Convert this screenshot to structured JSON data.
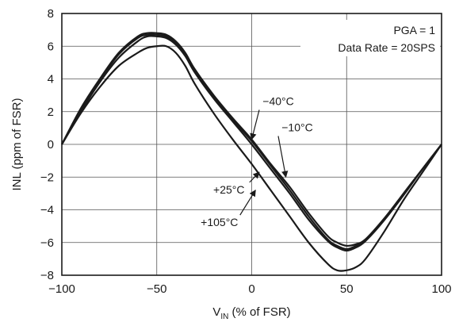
{
  "chart_data": {
    "type": "line",
    "title": "",
    "xlabel": {
      "main": "V",
      "sub": "IN",
      "rest": " (% of FSR)"
    },
    "ylabel": "INL (ppm of FSR)",
    "xlim": [
      -100,
      100
    ],
    "ylim": [
      -8,
      8
    ],
    "xticks": [
      -100,
      -50,
      0,
      50,
      100
    ],
    "xtick_labels": [
      "−100",
      "−50",
      "0",
      "50",
      "100"
    ],
    "yticks": [
      -8,
      -6,
      -4,
      -2,
      0,
      2,
      4,
      6,
      8
    ],
    "ytick_labels": [
      "−8",
      "−6",
      "−4",
      "−2",
      "0",
      "2",
      "4",
      "6",
      "8"
    ],
    "grid": true,
    "annotations": [
      "PGA = 1",
      "Data Rate = 20SPS"
    ],
    "series": [
      {
        "name": "−40°C",
        "x": [
          -100,
          -90,
          -80,
          -70,
          -60,
          -55,
          -50,
          -45,
          -40,
          -35,
          -30,
          -20,
          -10,
          0,
          10,
          20,
          30,
          40,
          45,
          50,
          55,
          60,
          70,
          80,
          90,
          100
        ],
        "y": [
          0,
          2.2,
          4.0,
          5.6,
          6.6,
          6.8,
          6.8,
          6.7,
          6.3,
          5.6,
          4.6,
          3.0,
          1.6,
          0.3,
          -1.2,
          -2.6,
          -4.2,
          -5.6,
          -6.0,
          -6.2,
          -6.1,
          -5.8,
          -4.6,
          -3.1,
          -1.5,
          0
        ]
      },
      {
        "name": "−10°C",
        "x": [
          -100,
          -90,
          -80,
          -70,
          -60,
          -55,
          -50,
          -45,
          -40,
          -35,
          -30,
          -20,
          -10,
          0,
          10,
          20,
          30,
          40,
          45,
          50,
          55,
          60,
          70,
          80,
          90,
          100
        ],
        "y": [
          0,
          2.1,
          3.9,
          5.5,
          6.5,
          6.7,
          6.7,
          6.6,
          6.2,
          5.5,
          4.5,
          2.9,
          1.5,
          0.2,
          -1.3,
          -2.8,
          -4.4,
          -5.8,
          -6.2,
          -6.4,
          -6.2,
          -5.8,
          -4.5,
          -3.0,
          -1.5,
          0
        ]
      },
      {
        "name": "+25°C",
        "x": [
          -100,
          -90,
          -80,
          -70,
          -60,
          -55,
          -50,
          -45,
          -40,
          -35,
          -30,
          -20,
          -10,
          0,
          10,
          20,
          30,
          40,
          45,
          50,
          55,
          60,
          70,
          80,
          90,
          100
        ],
        "y": [
          0,
          2.0,
          3.8,
          5.3,
          6.3,
          6.6,
          6.6,
          6.5,
          6.1,
          5.4,
          4.4,
          2.8,
          1.4,
          0.0,
          -1.5,
          -3.0,
          -4.6,
          -5.9,
          -6.3,
          -6.5,
          -6.3,
          -5.9,
          -4.6,
          -3.0,
          -1.5,
          0
        ]
      },
      {
        "name": "+105°C",
        "x": [
          -100,
          -90,
          -80,
          -70,
          -60,
          -55,
          -50,
          -45,
          -40,
          -35,
          -30,
          -20,
          -10,
          0,
          10,
          20,
          30,
          40,
          45,
          50,
          55,
          60,
          70,
          80,
          90,
          100
        ],
        "y": [
          0,
          1.9,
          3.5,
          4.8,
          5.6,
          5.9,
          6.0,
          6.0,
          5.6,
          4.8,
          3.7,
          1.9,
          0.3,
          -1.2,
          -2.8,
          -4.4,
          -6.0,
          -7.3,
          -7.7,
          -7.7,
          -7.5,
          -7.0,
          -5.3,
          -3.4,
          -1.7,
          0
        ]
      }
    ],
    "series_label_anchors": [
      {
        "name": "−40°C",
        "x": 14,
        "y": 2.4,
        "arrow_to": [
          0,
          0.3
        ]
      },
      {
        "name": "−10°C",
        "x": 24,
        "y": 0.8,
        "arrow_to": [
          18,
          -2.0
        ]
      },
      {
        "name": "+25°C",
        "x": -12,
        "y": -3.0,
        "arrow_to": [
          4,
          -1.7
        ]
      },
      {
        "name": "+105°C",
        "x": -17,
        "y": -5.0,
        "arrow_to": [
          2,
          -2.8
        ]
      }
    ]
  }
}
